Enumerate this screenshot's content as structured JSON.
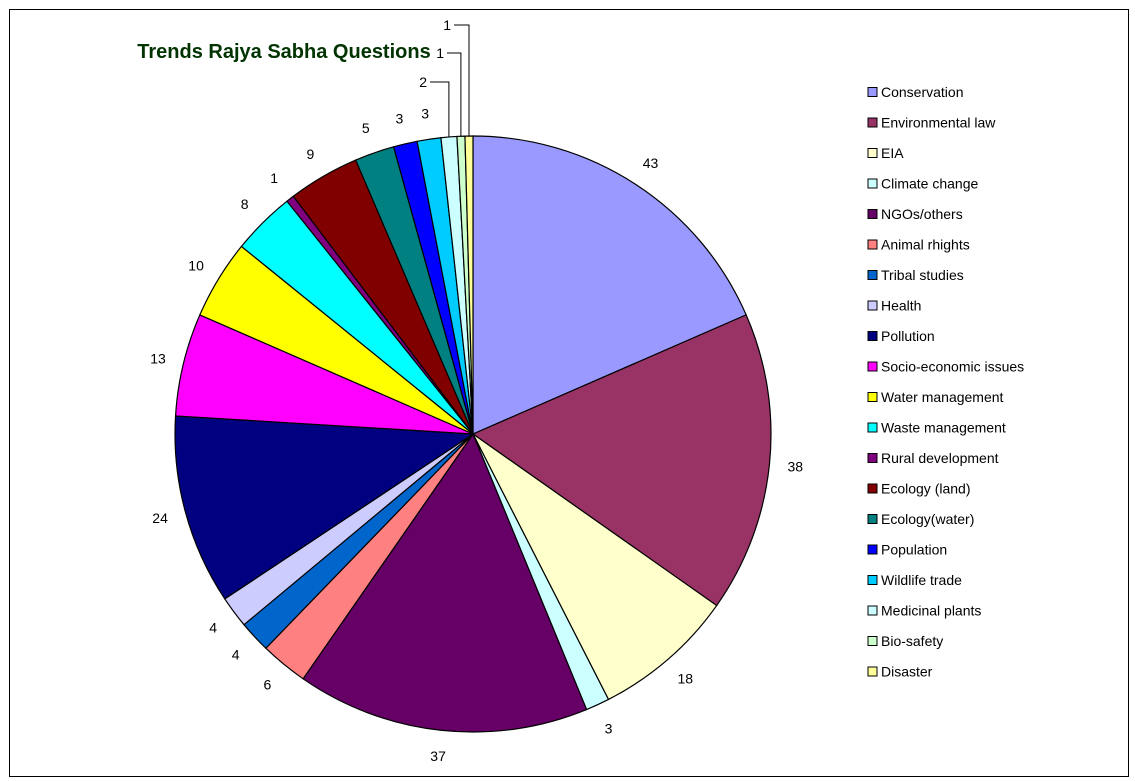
{
  "chart_data": {
    "type": "pie",
    "title": "Trends Rajya Sabha Questions",
    "legend_position": "right",
    "slices": [
      {
        "label": "Conservation",
        "value": 43,
        "color": "#9999FF"
      },
      {
        "label": "Environmental law",
        "value": 38,
        "color": "#993366"
      },
      {
        "label": "EIA",
        "value": 18,
        "color": "#FFFFCC"
      },
      {
        "label": "Climate change",
        "value": 3,
        "color": "#CCFFFF"
      },
      {
        "label": "NGOs/others",
        "value": 37,
        "color": "#660066"
      },
      {
        "label": "Animal rhights",
        "value": 6,
        "color": "#FF8080"
      },
      {
        "label": "Tribal studies",
        "value": 4,
        "color": "#0066CC"
      },
      {
        "label": "Health",
        "value": 4,
        "color": "#CCCCFF"
      },
      {
        "label": "Pollution",
        "value": 24,
        "color": "#000080"
      },
      {
        "label": "Socio-economic issues",
        "value": 13,
        "color": "#FF00FF"
      },
      {
        "label": "Water management",
        "value": 10,
        "color": "#FFFF00"
      },
      {
        "label": "Waste management",
        "value": 8,
        "color": "#00FFFF"
      },
      {
        "label": "Rural development",
        "value": 1,
        "color": "#800080"
      },
      {
        "label": "Ecology (land)",
        "value": 9,
        "color": "#800000"
      },
      {
        "label": "Ecology(water)",
        "value": 5,
        "color": "#008080"
      },
      {
        "label": "Population",
        "value": 3,
        "color": "#0000FF"
      },
      {
        "label": "Wildlife trade",
        "value": 3,
        "color": "#00CCFF"
      },
      {
        "label": "Medicinal plants",
        "value": 2,
        "color": "#CCFFFF"
      },
      {
        "label": "Bio-safety",
        "value": 1,
        "color": "#CCFFCC"
      },
      {
        "label": "Disaster",
        "value": 1,
        "color": "#FFFF99"
      }
    ]
  }
}
